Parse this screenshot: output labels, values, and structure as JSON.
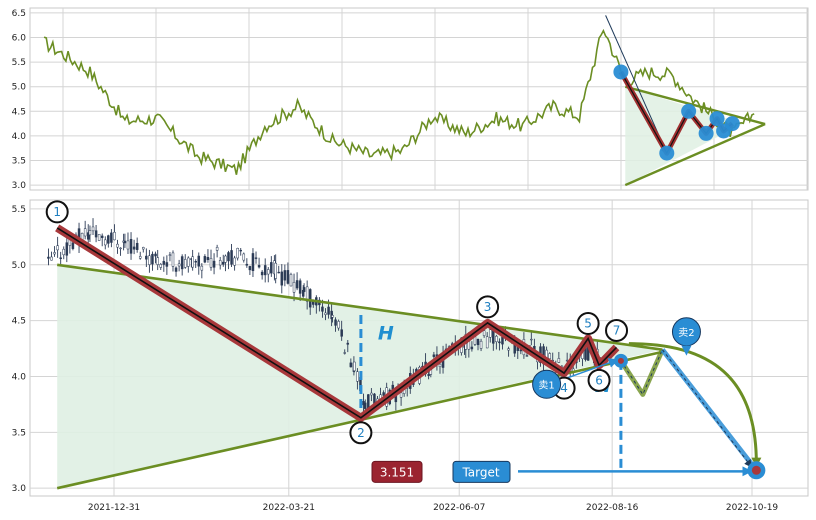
{
  "chart_data": [
    {
      "type": "line",
      "title": "",
      "ylim": [
        2.9,
        6.6
      ],
      "yticks": [
        "6.5",
        "6.0",
        "5.5",
        "5.0",
        "4.5",
        "4.0",
        "3.5",
        "3.0"
      ],
      "grid": true,
      "series": [
        {
          "color": "#6b8e23",
          "x": [
            "2021-11-29",
            "2021-12-10",
            "2021-12-20",
            "2022-01-05",
            "2022-01-20",
            "2022-02-07",
            "2022-02-25",
            "2022-03-10",
            "2022-03-25",
            "2022-04-10",
            "2022-04-28",
            "2022-05-12",
            "2022-05-26",
            "2022-06-10",
            "2022-06-24",
            "2022-07-06",
            "2022-07-20",
            "2022-08-01",
            "2022-08-12",
            "2022-08-22",
            "2022-09-01",
            "2022-09-12",
            "2022-09-22",
            "2022-10-10",
            "2022-10-20"
          ],
          "values": [
            5.9,
            5.6,
            5.3,
            4.3,
            4.35,
            3.6,
            3.3,
            4.2,
            4.6,
            3.9,
            3.6,
            3.7,
            4.4,
            4.05,
            4.35,
            4.2,
            4.6,
            4.4,
            6.2,
            5.1,
            5.3,
            5.25,
            4.75,
            4.05,
            4.45
          ]
        }
      ]
    },
    {
      "type": "candlestick",
      "title": "",
      "xlim": [
        "2021-11-29",
        "2022-10-27"
      ],
      "ylim": [
        2.93,
        5.58
      ],
      "xticks": [
        "2021-12-31",
        "2022-03-21",
        "2022-06-07",
        "2022-08-16",
        "2022-10-19"
      ],
      "yticks": [
        "5.5",
        "5.0",
        "4.5",
        "4.0",
        "3.5",
        "3.0"
      ],
      "grid": true,
      "price_wave": [
        {
          "label": "1",
          "date": "2021-12-05",
          "price": 5.33
        },
        {
          "label": "2",
          "date": "2022-04-23",
          "price": 3.63
        },
        {
          "label": "3",
          "date": "2022-06-20",
          "price": 4.48
        },
        {
          "label": "4",
          "date": "2022-07-25",
          "price": 4.03
        },
        {
          "label": "5",
          "date": "2022-08-05",
          "price": 4.34
        },
        {
          "label": "6",
          "date": "2022-08-10",
          "price": 4.1
        },
        {
          "label": "7",
          "date": "2022-08-18",
          "price": 4.26
        }
      ],
      "triangle": {
        "upper": [
          {
            "date": "2021-12-05",
            "price": 5.0
          },
          {
            "date": "2022-09-08",
            "price": 4.24
          }
        ],
        "lower": [
          {
            "date": "2021-12-05",
            "price": 3.0
          },
          {
            "date": "2022-09-08",
            "price": 4.22
          }
        ]
      },
      "signals": [
        {
          "label": "卖1",
          "date": "2022-07-17",
          "price": 3.93
        },
        {
          "label": "卖2",
          "date": "2022-09-19",
          "price": 4.4
        }
      ],
      "projection": [
        {
          "date": "2022-08-20",
          "price": 4.14
        },
        {
          "date": "2022-08-30",
          "price": 3.84
        },
        {
          "date": "2022-09-08",
          "price": 4.24
        },
        {
          "date": "2022-10-21",
          "price": 3.16
        }
      ],
      "breakout_price": 4.14,
      "target_price": 3.151,
      "target_label": "Target",
      "h_label": "H"
    }
  ]
}
